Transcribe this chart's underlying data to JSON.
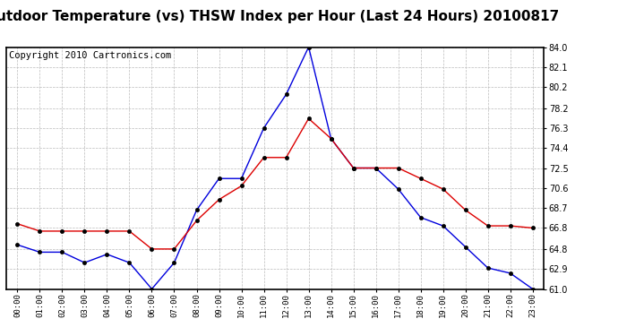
{
  "title": "Outdoor Temperature (vs) THSW Index per Hour (Last 24 Hours) 20100817",
  "copyright": "Copyright 2010 Cartronics.com",
  "hours": [
    "00:00",
    "01:00",
    "02:00",
    "03:00",
    "04:00",
    "05:00",
    "06:00",
    "07:00",
    "08:00",
    "09:00",
    "10:00",
    "11:00",
    "12:00",
    "13:00",
    "14:00",
    "15:00",
    "16:00",
    "17:00",
    "18:00",
    "19:00",
    "20:00",
    "21:00",
    "22:00",
    "23:00"
  ],
  "blue_temp": [
    65.2,
    64.5,
    64.5,
    63.5,
    64.3,
    63.5,
    61.0,
    63.5,
    68.5,
    71.5,
    71.5,
    76.3,
    79.5,
    84.0,
    75.3,
    72.5,
    72.5,
    70.5,
    67.8,
    67.0,
    65.0,
    63.0,
    62.5,
    61.0
  ],
  "red_thsw": [
    67.2,
    66.5,
    66.5,
    66.5,
    66.5,
    66.5,
    64.8,
    64.8,
    67.5,
    69.5,
    70.8,
    73.5,
    73.5,
    77.2,
    75.3,
    72.5,
    72.5,
    72.5,
    71.5,
    70.5,
    68.5,
    67.0,
    67.0,
    66.8
  ],
  "ylim_min": 61.0,
  "ylim_max": 84.0,
  "yticks": [
    61.0,
    62.9,
    64.8,
    66.8,
    68.7,
    70.6,
    72.5,
    74.4,
    76.3,
    78.2,
    80.2,
    82.1,
    84.0
  ],
  "blue_color": "#0000dd",
  "red_color": "#dd0000",
  "bg_color": "#ffffff",
  "plot_bg_color": "#ffffff",
  "grid_color": "#bbbbbb",
  "title_fontsize": 11,
  "copyright_fontsize": 7.5
}
